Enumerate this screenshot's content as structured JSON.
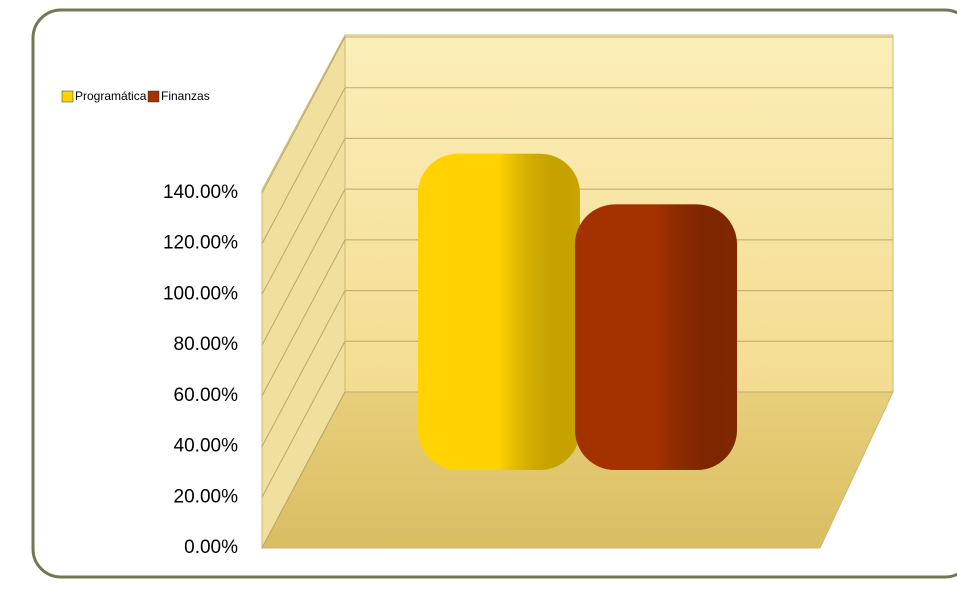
{
  "chart_data": {
    "type": "bar3d",
    "categories": [
      null
    ],
    "series": [
      {
        "name": "Programática",
        "color": "#ffd200",
        "values": [
          120
        ]
      },
      {
        "name": "Finanzas",
        "color": "#a33200",
        "values": [
          100
        ]
      }
    ],
    "ylim": [
      0,
      160
    ],
    "yticks": [
      {
        "value": 0,
        "label": "0.00%"
      },
      {
        "value": 20,
        "label": "20.00%"
      },
      {
        "value": 40,
        "label": "40.00%"
      },
      {
        "value": 60,
        "label": "60.00%"
      },
      {
        "value": 80,
        "label": "80.00%"
      },
      {
        "value": 100,
        "label": "100.00%"
      },
      {
        "value": 120,
        "label": "120.00%"
      },
      {
        "value": 140,
        "label": "140.00%"
      }
    ],
    "grid": true,
    "legend": "top-left"
  }
}
